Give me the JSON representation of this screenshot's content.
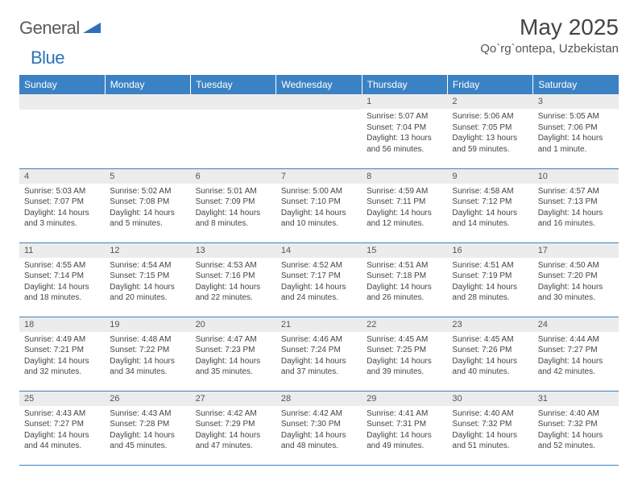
{
  "logo": {
    "part1": "General",
    "part2": "Blue"
  },
  "title": "May 2025",
  "location": "Qo`rg`ontepa, Uzbekistan",
  "colors": {
    "header_bg": "#3b82c4",
    "header_text": "#ffffff",
    "daynum_bg": "#ececec",
    "border": "#3b82c4",
    "logo_gray": "#5a5a5a",
    "logo_blue": "#2d72b8"
  },
  "weekdays": [
    "Sunday",
    "Monday",
    "Tuesday",
    "Wednesday",
    "Thursday",
    "Friday",
    "Saturday"
  ],
  "weeks": [
    [
      null,
      null,
      null,
      null,
      {
        "n": "1",
        "sr": "Sunrise: 5:07 AM",
        "ss": "Sunset: 7:04 PM",
        "dl": "Daylight: 13 hours and 56 minutes."
      },
      {
        "n": "2",
        "sr": "Sunrise: 5:06 AM",
        "ss": "Sunset: 7:05 PM",
        "dl": "Daylight: 13 hours and 59 minutes."
      },
      {
        "n": "3",
        "sr": "Sunrise: 5:05 AM",
        "ss": "Sunset: 7:06 PM",
        "dl": "Daylight: 14 hours and 1 minute."
      }
    ],
    [
      {
        "n": "4",
        "sr": "Sunrise: 5:03 AM",
        "ss": "Sunset: 7:07 PM",
        "dl": "Daylight: 14 hours and 3 minutes."
      },
      {
        "n": "5",
        "sr": "Sunrise: 5:02 AM",
        "ss": "Sunset: 7:08 PM",
        "dl": "Daylight: 14 hours and 5 minutes."
      },
      {
        "n": "6",
        "sr": "Sunrise: 5:01 AM",
        "ss": "Sunset: 7:09 PM",
        "dl": "Daylight: 14 hours and 8 minutes."
      },
      {
        "n": "7",
        "sr": "Sunrise: 5:00 AM",
        "ss": "Sunset: 7:10 PM",
        "dl": "Daylight: 14 hours and 10 minutes."
      },
      {
        "n": "8",
        "sr": "Sunrise: 4:59 AM",
        "ss": "Sunset: 7:11 PM",
        "dl": "Daylight: 14 hours and 12 minutes."
      },
      {
        "n": "9",
        "sr": "Sunrise: 4:58 AM",
        "ss": "Sunset: 7:12 PM",
        "dl": "Daylight: 14 hours and 14 minutes."
      },
      {
        "n": "10",
        "sr": "Sunrise: 4:57 AM",
        "ss": "Sunset: 7:13 PM",
        "dl": "Daylight: 14 hours and 16 minutes."
      }
    ],
    [
      {
        "n": "11",
        "sr": "Sunrise: 4:55 AM",
        "ss": "Sunset: 7:14 PM",
        "dl": "Daylight: 14 hours and 18 minutes."
      },
      {
        "n": "12",
        "sr": "Sunrise: 4:54 AM",
        "ss": "Sunset: 7:15 PM",
        "dl": "Daylight: 14 hours and 20 minutes."
      },
      {
        "n": "13",
        "sr": "Sunrise: 4:53 AM",
        "ss": "Sunset: 7:16 PM",
        "dl": "Daylight: 14 hours and 22 minutes."
      },
      {
        "n": "14",
        "sr": "Sunrise: 4:52 AM",
        "ss": "Sunset: 7:17 PM",
        "dl": "Daylight: 14 hours and 24 minutes."
      },
      {
        "n": "15",
        "sr": "Sunrise: 4:51 AM",
        "ss": "Sunset: 7:18 PM",
        "dl": "Daylight: 14 hours and 26 minutes."
      },
      {
        "n": "16",
        "sr": "Sunrise: 4:51 AM",
        "ss": "Sunset: 7:19 PM",
        "dl": "Daylight: 14 hours and 28 minutes."
      },
      {
        "n": "17",
        "sr": "Sunrise: 4:50 AM",
        "ss": "Sunset: 7:20 PM",
        "dl": "Daylight: 14 hours and 30 minutes."
      }
    ],
    [
      {
        "n": "18",
        "sr": "Sunrise: 4:49 AM",
        "ss": "Sunset: 7:21 PM",
        "dl": "Daylight: 14 hours and 32 minutes."
      },
      {
        "n": "19",
        "sr": "Sunrise: 4:48 AM",
        "ss": "Sunset: 7:22 PM",
        "dl": "Daylight: 14 hours and 34 minutes."
      },
      {
        "n": "20",
        "sr": "Sunrise: 4:47 AM",
        "ss": "Sunset: 7:23 PM",
        "dl": "Daylight: 14 hours and 35 minutes."
      },
      {
        "n": "21",
        "sr": "Sunrise: 4:46 AM",
        "ss": "Sunset: 7:24 PM",
        "dl": "Daylight: 14 hours and 37 minutes."
      },
      {
        "n": "22",
        "sr": "Sunrise: 4:45 AM",
        "ss": "Sunset: 7:25 PM",
        "dl": "Daylight: 14 hours and 39 minutes."
      },
      {
        "n": "23",
        "sr": "Sunrise: 4:45 AM",
        "ss": "Sunset: 7:26 PM",
        "dl": "Daylight: 14 hours and 40 minutes."
      },
      {
        "n": "24",
        "sr": "Sunrise: 4:44 AM",
        "ss": "Sunset: 7:27 PM",
        "dl": "Daylight: 14 hours and 42 minutes."
      }
    ],
    [
      {
        "n": "25",
        "sr": "Sunrise: 4:43 AM",
        "ss": "Sunset: 7:27 PM",
        "dl": "Daylight: 14 hours and 44 minutes."
      },
      {
        "n": "26",
        "sr": "Sunrise: 4:43 AM",
        "ss": "Sunset: 7:28 PM",
        "dl": "Daylight: 14 hours and 45 minutes."
      },
      {
        "n": "27",
        "sr": "Sunrise: 4:42 AM",
        "ss": "Sunset: 7:29 PM",
        "dl": "Daylight: 14 hours and 47 minutes."
      },
      {
        "n": "28",
        "sr": "Sunrise: 4:42 AM",
        "ss": "Sunset: 7:30 PM",
        "dl": "Daylight: 14 hours and 48 minutes."
      },
      {
        "n": "29",
        "sr": "Sunrise: 4:41 AM",
        "ss": "Sunset: 7:31 PM",
        "dl": "Daylight: 14 hours and 49 minutes."
      },
      {
        "n": "30",
        "sr": "Sunrise: 4:40 AM",
        "ss": "Sunset: 7:32 PM",
        "dl": "Daylight: 14 hours and 51 minutes."
      },
      {
        "n": "31",
        "sr": "Sunrise: 4:40 AM",
        "ss": "Sunset: 7:32 PM",
        "dl": "Daylight: 14 hours and 52 minutes."
      }
    ]
  ]
}
